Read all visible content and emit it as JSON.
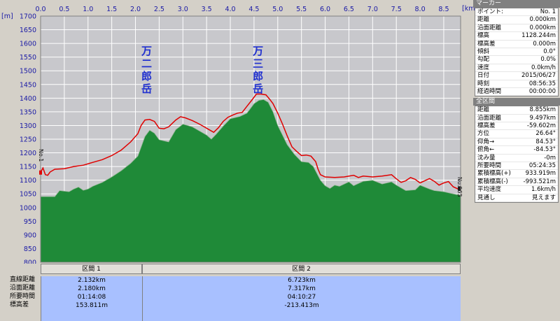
{
  "chart_data": {
    "type": "area",
    "y_unit": "[m]",
    "x_unit": "[km]",
    "xlim": [
      0,
      8.855
    ],
    "ylim": [
      800,
      1700
    ],
    "x_ticks": [
      "0.0",
      "0.5",
      "1.0",
      "1.5",
      "2.0",
      "2.5",
      "3.0",
      "3.5",
      "4.0",
      "4.5",
      "5.0",
      "5.5",
      "6.0",
      "6.5",
      "7.0",
      "7.5",
      "8.0",
      "8.5"
    ],
    "y_ticks": [
      "1700",
      "1650",
      "1600",
      "1550",
      "1500",
      "1450",
      "1400",
      "1350",
      "1300",
      "1250",
      "1200",
      "1150",
      "1100",
      "1050",
      "1000",
      "950",
      "900",
      "850",
      "800"
    ],
    "grid": true,
    "series": [
      {
        "color": "#e00000",
        "points": [
          [
            0,
            1128
          ],
          [
            0.05,
            1145
          ],
          [
            0.1,
            1120
          ],
          [
            0.15,
            1118
          ],
          [
            0.2,
            1130
          ],
          [
            0.3,
            1140
          ],
          [
            0.5,
            1142
          ],
          [
            0.7,
            1150
          ],
          [
            0.9,
            1155
          ],
          [
            1.1,
            1165
          ],
          [
            1.3,
            1175
          ],
          [
            1.5,
            1190
          ],
          [
            1.7,
            1210
          ],
          [
            1.9,
            1240
          ],
          [
            2.05,
            1270
          ],
          [
            2.12,
            1300
          ],
          [
            2.2,
            1320
          ],
          [
            2.3,
            1322
          ],
          [
            2.4,
            1315
          ],
          [
            2.5,
            1290
          ],
          [
            2.6,
            1288
          ],
          [
            2.7,
            1295
          ],
          [
            2.85,
            1320
          ],
          [
            2.95,
            1332
          ],
          [
            3.05,
            1328
          ],
          [
            3.2,
            1318
          ],
          [
            3.35,
            1305
          ],
          [
            3.45,
            1295
          ],
          [
            3.55,
            1285
          ],
          [
            3.65,
            1275
          ],
          [
            3.75,
            1292
          ],
          [
            3.85,
            1315
          ],
          [
            3.95,
            1330
          ],
          [
            4.05,
            1338
          ],
          [
            4.15,
            1345
          ],
          [
            4.25,
            1348
          ],
          [
            4.35,
            1370
          ],
          [
            4.45,
            1392
          ],
          [
            4.55,
            1415
          ],
          [
            4.65,
            1415
          ],
          [
            4.75,
            1412
          ],
          [
            4.82,
            1398
          ],
          [
            4.9,
            1380
          ],
          [
            5.0,
            1345
          ],
          [
            5.1,
            1305
          ],
          [
            5.2,
            1262
          ],
          [
            5.3,
            1222
          ],
          [
            5.4,
            1205
          ],
          [
            5.5,
            1190
          ],
          [
            5.6,
            1192
          ],
          [
            5.7,
            1188
          ],
          [
            5.8,
            1168
          ],
          [
            5.85,
            1140
          ],
          [
            5.9,
            1120
          ],
          [
            6.0,
            1112
          ],
          [
            6.2,
            1110
          ],
          [
            6.4,
            1112
          ],
          [
            6.6,
            1118
          ],
          [
            6.7,
            1110
          ],
          [
            6.8,
            1115
          ],
          [
            7.0,
            1112
          ],
          [
            7.2,
            1115
          ],
          [
            7.4,
            1120
          ],
          [
            7.5,
            1105
          ],
          [
            7.6,
            1092
          ],
          [
            7.7,
            1098
          ],
          [
            7.8,
            1110
          ],
          [
            7.9,
            1103
          ],
          [
            8.0,
            1090
          ],
          [
            8.1,
            1098
          ],
          [
            8.2,
            1106
          ],
          [
            8.3,
            1096
          ],
          [
            8.4,
            1082
          ],
          [
            8.5,
            1090
          ],
          [
            8.6,
            1095
          ],
          [
            8.7,
            1076
          ],
          [
            8.8,
            1068
          ],
          [
            8.855,
            1070
          ]
        ]
      },
      {
        "color": "#1f8a38",
        "points": [
          [
            0,
            1040
          ],
          [
            0.3,
            1040
          ],
          [
            0.4,
            1062
          ],
          [
            0.5,
            1060
          ],
          [
            0.6,
            1058
          ],
          [
            0.7,
            1068
          ],
          [
            0.8,
            1075
          ],
          [
            0.9,
            1063
          ],
          [
            1.0,
            1068
          ],
          [
            1.1,
            1078
          ],
          [
            1.3,
            1092
          ],
          [
            1.5,
            1112
          ],
          [
            1.7,
            1135
          ],
          [
            1.9,
            1162
          ],
          [
            2.05,
            1188
          ],
          [
            2.2,
            1260
          ],
          [
            2.3,
            1283
          ],
          [
            2.4,
            1272
          ],
          [
            2.5,
            1248
          ],
          [
            2.7,
            1240
          ],
          [
            2.85,
            1285
          ],
          [
            3.0,
            1305
          ],
          [
            3.2,
            1295
          ],
          [
            3.4,
            1275
          ],
          [
            3.5,
            1265
          ],
          [
            3.6,
            1250
          ],
          [
            3.7,
            1268
          ],
          [
            3.85,
            1298
          ],
          [
            4.0,
            1325
          ],
          [
            4.2,
            1333
          ],
          [
            4.35,
            1345
          ],
          [
            4.5,
            1380
          ],
          [
            4.6,
            1392
          ],
          [
            4.7,
            1395
          ],
          [
            4.8,
            1385
          ],
          [
            4.9,
            1350
          ],
          [
            5.0,
            1300
          ],
          [
            5.2,
            1230
          ],
          [
            5.35,
            1195
          ],
          [
            5.5,
            1168
          ],
          [
            5.65,
            1165
          ],
          [
            5.75,
            1150
          ],
          [
            5.9,
            1100
          ],
          [
            6.0,
            1080
          ],
          [
            6.1,
            1070
          ],
          [
            6.2,
            1082
          ],
          [
            6.3,
            1078
          ],
          [
            6.5,
            1094
          ],
          [
            6.6,
            1080
          ],
          [
            6.8,
            1096
          ],
          [
            7.0,
            1100
          ],
          [
            7.2,
            1086
          ],
          [
            7.4,
            1094
          ],
          [
            7.5,
            1082
          ],
          [
            7.7,
            1062
          ],
          [
            7.9,
            1065
          ],
          [
            8.0,
            1082
          ],
          [
            8.2,
            1068
          ],
          [
            8.3,
            1062
          ],
          [
            8.5,
            1058
          ],
          [
            8.7,
            1050
          ],
          [
            8.855,
            1045
          ]
        ]
      }
    ],
    "annotations": [
      {
        "text": "万二郎岳",
        "x": 2.25
      },
      {
        "text": "万三郎岳",
        "x": 4.6
      }
    ],
    "start_marker": "No.1",
    "end_marker": "No.863"
  },
  "sections": {
    "row_labels": [
      "直線距離",
      "沿面距離",
      "所要時間",
      "標高差"
    ],
    "columns": [
      {
        "header": "区間 1",
        "values": [
          "2.132km",
          "2.180km",
          "01:14:08",
          "153.811m"
        ]
      },
      {
        "header": "区間 2",
        "values": [
          "6.723km",
          "7.317km",
          "04:10:27",
          "-213.413m"
        ]
      }
    ]
  },
  "panel": {
    "marker_header": "マーカー",
    "marker_rows": [
      {
        "label": "ポイント:",
        "value": "No. 1"
      },
      {
        "label": "距離",
        "value": "0.000km"
      },
      {
        "label": "沿面距離",
        "value": "0.000km"
      },
      {
        "label": "標高",
        "value": "1128.244m"
      },
      {
        "label": "標高差",
        "value": "0.000m"
      },
      {
        "label": "傾斜",
        "value": "0.0°"
      },
      {
        "label": "勾配",
        "value": "0.0%"
      },
      {
        "label": "速度",
        "value": "0.0km/h"
      },
      {
        "label": "日付",
        "value": "2015/06/27"
      },
      {
        "label": "時刻",
        "value": "08:56:35"
      },
      {
        "label": "経過時間",
        "value": "00:00:00"
      }
    ],
    "total_header": "全区間",
    "total_rows": [
      {
        "label": "距離",
        "value": "8.855km"
      },
      {
        "label": "沿面距離",
        "value": "9.497km"
      },
      {
        "label": "標高差",
        "value": "-59.602m"
      },
      {
        "label": "方位",
        "value": "26.64°"
      },
      {
        "label": "仰角→",
        "value": "84.53°"
      },
      {
        "label": "俯角←",
        "value": "-84.53°"
      },
      {
        "label": "沈み量",
        "value": "-0m"
      },
      {
        "label": "所要時間",
        "value": "05:24:35"
      },
      {
        "label": "累積標高(+)",
        "value": "933.919m"
      },
      {
        "label": "累積標高(-)",
        "value": "-993.521m"
      },
      {
        "label": "平均速度",
        "value": "1.6km/h"
      },
      {
        "label": "見通し",
        "value": "見えます"
      }
    ]
  }
}
